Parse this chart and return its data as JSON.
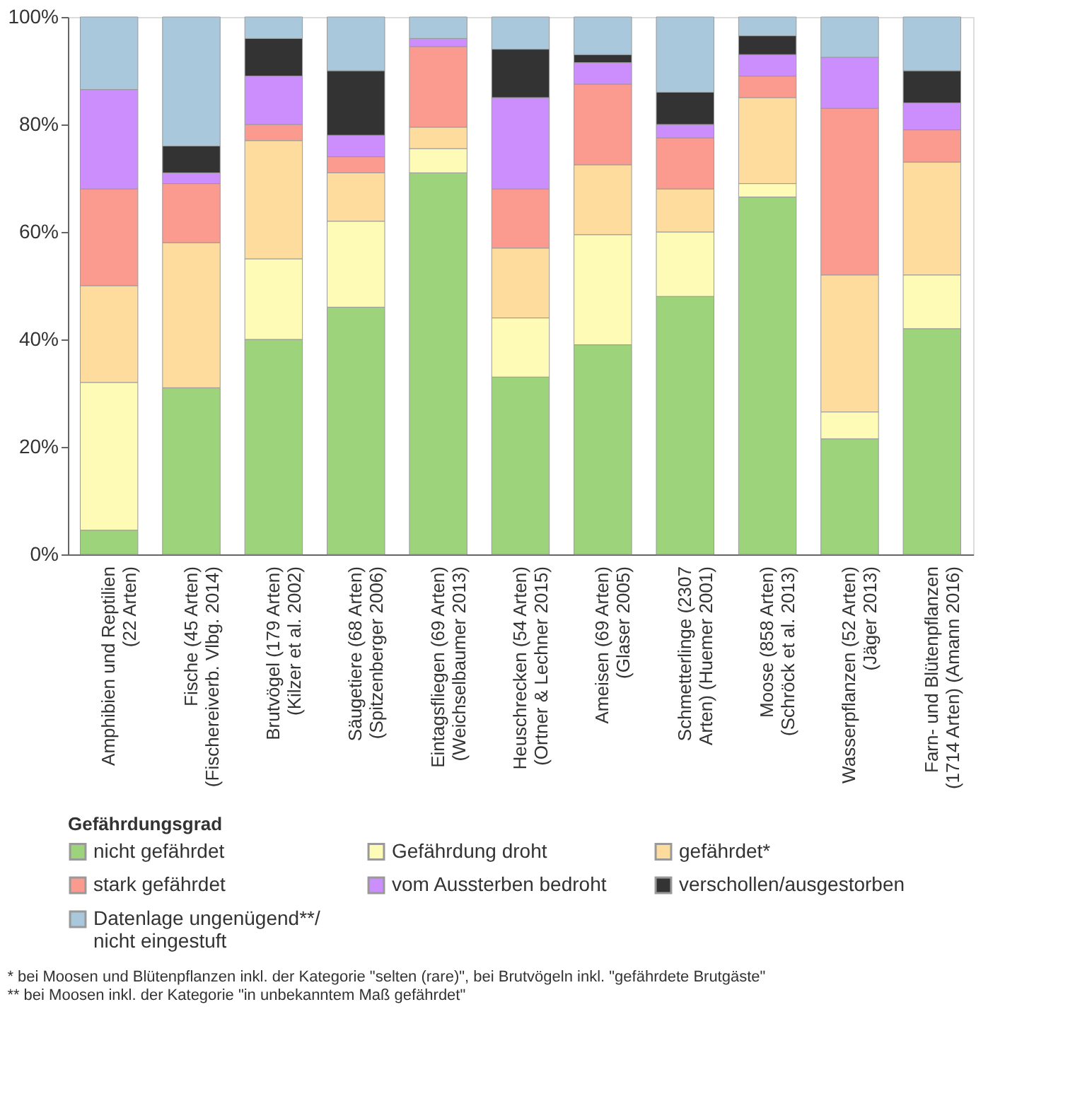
{
  "chart_data": {
    "type": "bar",
    "stacked": true,
    "legend": "bottom",
    "legend_title": "Gefährdungsgrad",
    "categories": [
      "Amphibien und Reptilien\n(22 Arten)",
      "Fische (45 Arten)\n(Fischereiverb. Vlbg. 2014)",
      "Brutvögel (179 Arten)\n(Kilzer et al. 2002)",
      "Säugetiere (68 Arten)\n(Spitzenberger 2006)",
      "Eintagsfliegen (69 Arten)\n(Weichselbaumer 2013)",
      "Heuschrecken (54 Arten)\n(Ortner & Lechner 2015)",
      "Ameisen (69 Arten)\n(Glaser 2005)",
      "Schmetterlinge (2307\nArten) (Huemer 2001)",
      "Moose (858 Arten)\n(Schröck et al. 2013)",
      "Wasserpflanzen (52 Arten)\n(Jäger 2013)",
      "Farn- und Blütenpflanzen\n(1714 Arten) (Amann 2016)"
    ],
    "series": [
      {
        "name": "nicht gefährdet",
        "color": "#9dd37a",
        "values": [
          4.5,
          31,
          40,
          46,
          71,
          33,
          39,
          48,
          66.5,
          21.5,
          42
        ]
      },
      {
        "name": "Gefährdung droht",
        "color": "#fdfbb5",
        "values": [
          27.5,
          null,
          15,
          16,
          4.5,
          11,
          20.5,
          12,
          2.5,
          5,
          10
        ]
      },
      {
        "name": "gefährdet*",
        "color": "#fddc9e",
        "values": [
          18,
          27,
          22,
          9,
          4,
          13,
          13,
          8,
          16,
          25.5,
          21
        ]
      },
      {
        "name": "stark gefährdet",
        "color": "#fb9a8f",
        "values": [
          18,
          11,
          3,
          3,
          15,
          11,
          15,
          9.5,
          4,
          31,
          6
        ]
      },
      {
        "name": "vom Aussterben bedroht",
        "color": "#cc8efc",
        "values": [
          18.5,
          2,
          9,
          4,
          1.5,
          17,
          4,
          2.5,
          4,
          9.5,
          5
        ]
      },
      {
        "name": "verschollen/ausgestorben",
        "color": "#333333",
        "values": [
          null,
          5,
          7,
          12,
          null,
          9,
          1.5,
          6,
          3.5,
          null,
          6
        ]
      },
      {
        "name": "Datenlage ungenügend**/\nnicht eingestuft",
        "color": "#a9c8dc",
        "values": [
          13.5,
          24,
          4,
          10,
          4,
          6,
          7,
          14,
          3.5,
          7.5,
          10
        ]
      }
    ],
    "ylim": [
      0,
      100
    ],
    "yticks": [
      {
        "value": 0,
        "label": "0%"
      },
      {
        "value": 20,
        "label": "20%"
      },
      {
        "value": 40,
        "label": "40%"
      },
      {
        "value": 60,
        "label": "60%"
      },
      {
        "value": 80,
        "label": "80%"
      },
      {
        "value": 100,
        "label": "100%"
      }
    ],
    "grid": false,
    "annotations": [
      "* bei Moosen und Blütenpflanzen inkl. der Kategorie \"selten (rare)\", bei Brutvögeln inkl. \"gefährdete Brutgäste\"",
      "** bei Moosen inkl. der Kategorie \"in unbekanntem Maß gefährdet\""
    ]
  }
}
